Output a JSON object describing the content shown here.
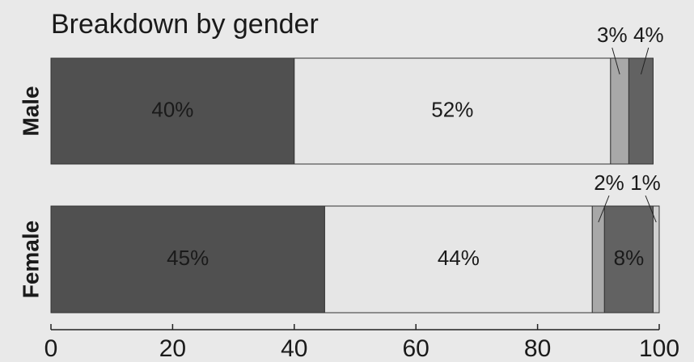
{
  "chart_data": {
    "type": "stacked-barh",
    "title": "Breakdown by gender",
    "categories": [
      "Male",
      "Female"
    ],
    "series": [
      {
        "color": "#505050",
        "values": [
          40,
          45
        ],
        "value_labels": [
          "40%",
          "45%"
        ]
      },
      {
        "color": "#e6e6e6",
        "values": [
          52,
          44
        ],
        "value_labels": [
          "52%",
          "44%"
        ]
      },
      {
        "color": "#a8a8a8",
        "values": [
          3,
          2
        ],
        "value_labels": [
          "3%",
          "2%"
        ]
      },
      {
        "color": "#626262",
        "values": [
          4,
          8
        ],
        "value_labels": [
          "4%",
          "8%"
        ]
      },
      {
        "color": "#cfcfcf",
        "values": [
          null,
          1
        ],
        "value_labels": [
          null,
          "1%"
        ]
      }
    ],
    "xlim": [
      0,
      100
    ],
    "xticks": [
      0,
      20,
      40,
      60,
      80,
      100
    ]
  }
}
